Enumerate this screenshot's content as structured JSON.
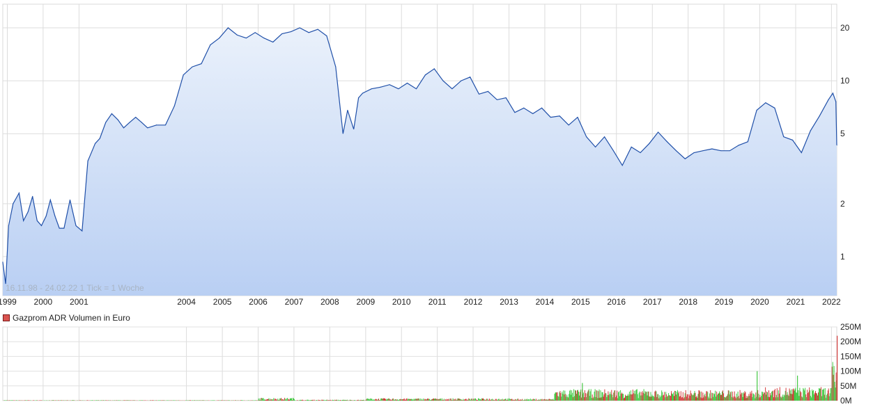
{
  "chart_data": [
    {
      "type": "area",
      "y_scale": "log",
      "ylim": [
        0.6,
        24
      ],
      "xlim": [
        "1998-11-16",
        "2022-02-24"
      ],
      "x_tick_labels": [
        "1999",
        "2000",
        "2001",
        "2004",
        "2005",
        "2006",
        "2007",
        "2008",
        "2009",
        "2010",
        "2011",
        "2012",
        "2013",
        "2014",
        "2015",
        "2016",
        "2017",
        "2018",
        "2019",
        "2020",
        "2021",
        "2022"
      ],
      "y_tick_labels": [
        "20",
        "10",
        "5",
        "2",
        "1"
      ],
      "y_ticks": [
        20,
        10,
        5,
        2,
        1
      ],
      "grid": true,
      "note": "16.11.98 - 24.02.22   1 Tick = 1 Woche",
      "line_color": "#1f4fa8",
      "fill_top_color": "#eaf1fb",
      "fill_bottom_color": "#b9cff3",
      "series": [
        {
          "x": [
            "1998-11-16",
            "1998-12-15",
            "1999-01-15",
            "1999-03-01",
            "1999-05-01",
            "1999-06-15",
            "1999-08-01",
            "1999-09-15",
            "1999-11-01",
            "1999-12-15",
            "2000-02-01",
            "2000-03-15",
            "2000-05-01",
            "2000-06-15",
            "2000-08-01",
            "2000-10-01",
            "2000-12-01",
            "2001-02-01",
            "2001-04-01",
            "2001-05-15",
            "2001-06-15",
            "2001-08-01",
            "2001-10-01",
            "2001-12-01",
            "2002-02-01",
            "2002-04-01",
            "2002-06-01",
            "2002-08-01",
            "2002-10-01",
            "2002-12-01",
            "2003-03-01",
            "2003-06-01",
            "2003-09-01",
            "2003-12-01",
            "2004-03-01",
            "2004-06-01",
            "2004-09-01",
            "2004-12-01",
            "2005-03-01",
            "2005-06-01",
            "2005-09-01",
            "2005-12-01",
            "2006-03-01",
            "2006-06-01",
            "2006-09-01",
            "2006-12-01",
            "2007-03-01",
            "2007-06-01",
            "2007-09-01",
            "2007-12-01",
            "2008-03-01",
            "2008-05-15",
            "2008-07-01",
            "2008-09-01",
            "2008-10-20",
            "2008-12-01",
            "2009-03-01",
            "2009-06-01",
            "2009-09-01",
            "2009-12-01",
            "2010-03-01",
            "2010-06-01",
            "2010-09-01",
            "2010-12-01",
            "2011-03-01",
            "2011-06-01",
            "2011-09-01",
            "2011-12-01",
            "2012-03-01",
            "2012-06-01",
            "2012-09-01",
            "2012-12-01",
            "2013-03-01",
            "2013-06-01",
            "2013-09-01",
            "2013-12-01",
            "2014-03-01",
            "2014-06-01",
            "2014-09-01",
            "2014-12-01",
            "2015-03-01",
            "2015-06-01",
            "2015-09-01",
            "2015-12-01",
            "2016-03-01",
            "2016-06-01",
            "2016-09-01",
            "2016-12-01",
            "2017-03-01",
            "2017-06-01",
            "2017-09-01",
            "2017-12-01",
            "2018-03-01",
            "2018-06-01",
            "2018-09-01",
            "2018-12-01",
            "2019-03-01",
            "2019-06-01",
            "2019-09-01",
            "2019-12-01",
            "2020-03-01",
            "2020-06-01",
            "2020-09-01",
            "2020-12-01",
            "2021-03-01",
            "2021-06-01",
            "2021-09-01",
            "2021-12-01",
            "2022-01-15",
            "2022-02-15",
            "2022-02-24"
          ],
          "values": [
            0.93,
            0.7,
            1.5,
            2.0,
            2.3,
            1.6,
            1.8,
            2.2,
            1.6,
            1.5,
            1.7,
            2.1,
            1.7,
            1.45,
            1.45,
            2.1,
            1.5,
            1.4,
            3.5,
            4.0,
            4.4,
            4.7,
            5.8,
            6.5,
            6.0,
            5.4,
            5.8,
            6.2,
            5.8,
            5.4,
            5.6,
            5.6,
            7.2,
            10.8,
            12.0,
            12.5,
            16.0,
            17.5,
            20.0,
            18.2,
            17.5,
            18.8,
            17.5,
            16.6,
            18.5,
            19.0,
            20.0,
            18.8,
            19.6,
            18.0,
            12.0,
            5.0,
            6.8,
            5.3,
            8.0,
            8.5,
            9.0,
            9.2,
            9.5,
            9.0,
            9.7,
            9.0,
            10.8,
            11.7,
            10.0,
            9.0,
            10.0,
            10.5,
            8.4,
            8.7,
            7.8,
            8.0,
            6.6,
            7.0,
            6.5,
            7.0,
            6.2,
            6.3,
            5.6,
            6.2,
            4.8,
            4.2,
            4.8,
            4.0,
            3.3,
            4.2,
            3.9,
            4.4,
            5.1,
            4.5,
            4.0,
            3.6,
            3.9,
            4.0,
            4.1,
            4.0,
            4.0,
            4.3,
            4.5,
            6.8,
            7.5,
            7.0,
            4.8,
            4.6,
            3.9,
            5.2,
            6.3,
            7.8,
            8.5,
            7.6,
            4.3
          ]
        }
      ]
    },
    {
      "type": "bar",
      "title": "Gazprom ADR Volumen in Euro",
      "y_tick_labels": [
        "250M",
        "200M",
        "150M",
        "100M",
        "50M",
        "0M"
      ],
      "y_ticks": [
        250,
        200,
        150,
        100,
        50,
        0
      ],
      "unit": "M",
      "ylim": [
        0,
        250
      ],
      "grid": true,
      "up_color": "#44c944",
      "down_color": "#d33c3c",
      "legend_color": "#d9534f",
      "volume_levels": [
        {
          "from": "1998-11-16",
          "to": "2005-12-31",
          "level": 1
        },
        {
          "from": "2006-01-01",
          "to": "2006-12-31",
          "level": 6
        },
        {
          "from": "2007-01-01",
          "to": "2008-12-31",
          "level": 2
        },
        {
          "from": "2009-01-01",
          "to": "2012-12-31",
          "level": 5
        },
        {
          "from": "2013-01-01",
          "to": "2014-03-31",
          "level": 4
        },
        {
          "from": "2014-04-01",
          "to": "2016-12-31",
          "level": 24
        },
        {
          "from": "2017-01-01",
          "to": "2019-12-31",
          "level": 22
        },
        {
          "from": "2020-01-01",
          "to": "2021-12-31",
          "level": 28
        },
        {
          "from": "2022-01-01",
          "to": "2022-02-24",
          "level": 80
        }
      ],
      "peaks": [
        {
          "x": "2015-01-15",
          "value": 60
        },
        {
          "x": "2019-12-01",
          "value": 100
        },
        {
          "x": "2021-01-15",
          "value": 85
        },
        {
          "x": "2022-02-24",
          "value": 220
        }
      ]
    }
  ]
}
